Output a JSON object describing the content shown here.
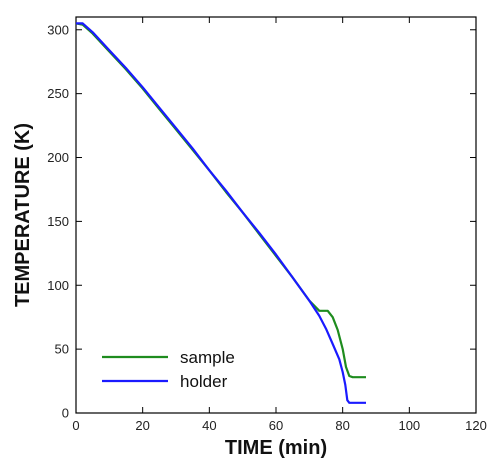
{
  "chart_data": {
    "type": "line",
    "xlabel": "TIME (min)",
    "ylabel": "TEMPERATURE (K)",
    "xlim": [
      0,
      120
    ],
    "ylim": [
      0,
      310
    ],
    "xticks": [
      0,
      20,
      40,
      60,
      80,
      100,
      120
    ],
    "yticks": [
      0,
      50,
      100,
      150,
      200,
      250,
      300
    ],
    "grid": false,
    "legend_position": "bottom-left",
    "series": [
      {
        "name": "sample",
        "color": "#1e8c1e",
        "x": [
          0,
          2,
          5,
          10,
          15,
          20,
          25,
          30,
          35,
          40,
          45,
          50,
          55,
          60,
          65,
          70,
          73,
          74.5,
          75.5,
          77,
          78.5,
          80,
          81,
          82,
          83,
          85,
          87
        ],
        "y": [
          305,
          304,
          297,
          283,
          269,
          254,
          238,
          222,
          206,
          190,
          173,
          157,
          140,
          123,
          106,
          88,
          80,
          80,
          80,
          75,
          65,
          50,
          36,
          29,
          28,
          28,
          28
        ]
      },
      {
        "name": "holder",
        "color": "#1a1aff",
        "x": [
          0,
          2,
          5,
          10,
          15,
          20,
          25,
          30,
          35,
          40,
          45,
          50,
          55,
          60,
          65,
          70,
          73,
          75,
          77,
          79,
          80,
          80.8,
          81.4,
          82,
          83,
          85,
          87
        ],
        "y": [
          305,
          305,
          298,
          284,
          270,
          255,
          239,
          223,
          207,
          190,
          174,
          157,
          141,
          124,
          106,
          88,
          76,
          66,
          54,
          42,
          32,
          22,
          10,
          8,
          8,
          8,
          8
        ]
      }
    ]
  }
}
